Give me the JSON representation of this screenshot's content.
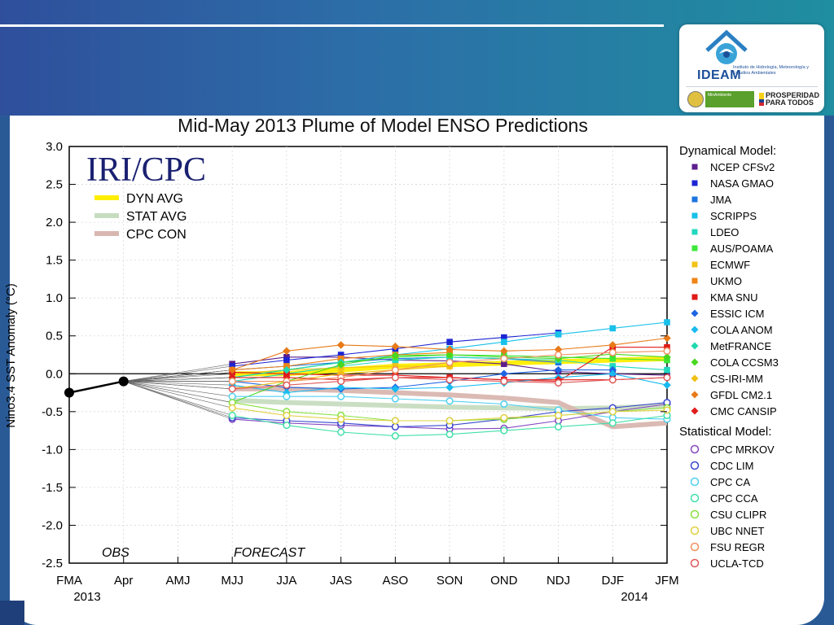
{
  "logos": {
    "ideam_name": "IDEAM",
    "ideam_subtitle": "Instituto de Hidrología, Meteorología y Estudios Ambientales",
    "ministry_text": "MinAmbiente",
    "prosperidad_line1": "PROSPERIDAD",
    "prosperidad_line2": "PARA TODOS"
  },
  "chart_data": {
    "type": "line",
    "title": "Mid-May 2013 Plume of Model ENSO Predictions",
    "watermark": "IRI/CPC",
    "ylabel": "Nino3.4 SST Anomaly (°C)",
    "ylim": [
      -2.5,
      3.0
    ],
    "yticks": [
      "3.0",
      "2.5",
      "2.0",
      "1.5",
      "1.0",
      "0.5",
      "0.0",
      "-0.5",
      "-1.0",
      "-1.5",
      "-2.0",
      "-2.5"
    ],
    "categories": [
      "FMA",
      "Apr",
      "AMJ",
      "MJJ",
      "JJA",
      "JAS",
      "ASO",
      "SON",
      "OND",
      "NDJ",
      "DJF",
      "JFM"
    ],
    "year_labels": [
      "2013",
      "2014"
    ],
    "obs_label": "OBS",
    "forecast_label": "FORECAST",
    "observed": [
      -0.25,
      -0.1
    ],
    "averages": [
      {
        "name": "DYN AVG",
        "color": "#ffee00",
        "values": [
          0.0,
          0.0,
          0.05,
          0.1,
          0.12,
          0.14,
          0.16,
          0.18,
          0.2
        ]
      },
      {
        "name": "STAT AVG",
        "color": "#c7dcc0",
        "values": [
          -0.35,
          -0.38,
          -0.4,
          -0.42,
          -0.44,
          -0.45,
          -0.46,
          -0.45,
          -0.42
        ]
      },
      {
        "name": "CPC CON",
        "color": "#d9b6b0",
        "values": [
          -0.2,
          -0.2,
          -0.22,
          -0.25,
          -0.28,
          -0.32,
          -0.38,
          -0.7,
          -0.65
        ]
      }
    ],
    "legend_dynamical_title": "Dynamical Model:",
    "legend_statistical_title": "Statistical Model:",
    "dynamical_models": [
      {
        "name": "NCEP CFSv2",
        "color": "#5c1f8c",
        "marker": "square",
        "values": [
          0.13,
          0.22,
          0.22,
          0.18,
          0.17,
          0.13,
          0.03,
          0.0,
          -0.02
        ]
      },
      {
        "name": "NASA GMAO",
        "color": "#1c24d4",
        "marker": "square",
        "values": [
          0.1,
          0.18,
          0.25,
          0.33,
          0.42,
          0.48,
          0.54,
          null,
          null
        ]
      },
      {
        "name": "JMA",
        "color": "#1b74e0",
        "marker": "square",
        "values": [
          0.05,
          0.1,
          0.15,
          0.2,
          0.22,
          0.2,
          0.15,
          null,
          null
        ]
      },
      {
        "name": "SCRIPPS",
        "color": "#18c0ea",
        "marker": "square",
        "values": [
          -0.05,
          0.05,
          0.15,
          0.25,
          0.33,
          0.42,
          0.52,
          0.6,
          0.68
        ]
      },
      {
        "name": "LDEO",
        "color": "#20d9c0",
        "marker": "square",
        "values": [
          -0.1,
          0.0,
          0.1,
          0.18,
          0.22,
          0.2,
          0.18,
          0.1,
          0.05
        ]
      },
      {
        "name": "AUS/POAMA",
        "color": "#3be838",
        "marker": "square",
        "values": [
          -0.05,
          0.05,
          0.15,
          0.22,
          0.25,
          0.24,
          0.22,
          0.2,
          0.18
        ]
      },
      {
        "name": "ECMWF",
        "color": "#f2c318",
        "marker": "square",
        "values": [
          0.0,
          0.05,
          0.08,
          0.1,
          0.1,
          null,
          null,
          null,
          null
        ]
      },
      {
        "name": "UKMO",
        "color": "#f08416",
        "marker": "square",
        "values": [
          0.05,
          0.1,
          0.2,
          0.25,
          0.28,
          null,
          null,
          null,
          null
        ]
      },
      {
        "name": "KMA SNU",
        "color": "#e01818",
        "marker": "square",
        "values": [
          0.02,
          0.0,
          -0.02,
          -0.02,
          -0.05,
          -0.08,
          -0.1,
          0.35,
          0.35
        ]
      },
      {
        "name": "ESSIC ICM",
        "color": "#1c64e4",
        "marker": "diamond",
        "values": [
          -0.1,
          -0.18,
          -0.2,
          -0.18,
          -0.1,
          0.0,
          0.05,
          0.05,
          null
        ]
      },
      {
        "name": "COLA ANOM",
        "color": "#18baf0",
        "marker": "diamond",
        "values": [
          -0.15,
          -0.25,
          -0.18,
          -0.2,
          -0.18,
          -0.12,
          -0.05,
          0.0,
          -0.15
        ]
      },
      {
        "name": "MetFRANCE",
        "color": "#20d8b0",
        "marker": "diamond",
        "values": [
          -0.05,
          0.05,
          0.15,
          null,
          null,
          null,
          null,
          null,
          null
        ]
      },
      {
        "name": "COLA CCSM3",
        "color": "#48d820",
        "marker": "diamond",
        "values": [
          -0.38,
          -0.1,
          0.12,
          0.24,
          0.25,
          0.22,
          0.2,
          0.26,
          0.22
        ]
      },
      {
        "name": "CS-IRI-MM",
        "color": "#f0c010",
        "marker": "diamond",
        "values": [
          -0.2,
          -0.1,
          0.0,
          0.05,
          0.1,
          null,
          null,
          null,
          null
        ]
      },
      {
        "name": "GFDL CM2.1",
        "color": "#e87a18",
        "marker": "diamond",
        "values": [
          0.05,
          0.3,
          0.38,
          0.36,
          0.32,
          0.3,
          0.32,
          0.38,
          0.47
        ]
      },
      {
        "name": "CMC CANSIP",
        "color": "#e01c1c",
        "marker": "diamond",
        "values": [
          -0.05,
          -0.05,
          -0.08,
          -0.05,
          -0.05,
          -0.08,
          -0.08,
          -0.08,
          -0.05
        ]
      }
    ],
    "statistical_models": [
      {
        "name": "CPC MRKOV",
        "color": "#8448c0",
        "marker": "circle",
        "values": [
          -0.6,
          -0.65,
          -0.68,
          -0.7,
          -0.73,
          -0.72,
          -0.62,
          -0.5,
          -0.4
        ]
      },
      {
        "name": "CDC LIM",
        "color": "#3a48d0",
        "marker": "circle",
        "values": [
          -0.58,
          -0.62,
          -0.65,
          -0.7,
          -0.68,
          -0.6,
          -0.5,
          -0.45,
          -0.38
        ]
      },
      {
        "name": "CPC CA",
        "color": "#50d0f0",
        "marker": "circle",
        "values": [
          -0.3,
          -0.3,
          -0.3,
          -0.33,
          -0.36,
          -0.4,
          -0.48,
          -0.58,
          -0.6
        ]
      },
      {
        "name": "CPC CCA",
        "color": "#40e0a8",
        "marker": "circle",
        "values": [
          -0.55,
          -0.68,
          -0.77,
          -0.82,
          -0.8,
          -0.75,
          -0.7,
          -0.65,
          -0.55
        ]
      },
      {
        "name": "CSU CLIPR",
        "color": "#88e040",
        "marker": "circle",
        "values": [
          -0.38,
          -0.5,
          -0.55,
          -0.62,
          -0.62,
          -0.6,
          -0.55,
          -0.5,
          -0.45
        ]
      },
      {
        "name": "UBC NNET",
        "color": "#e0d040",
        "marker": "circle",
        "values": [
          -0.45,
          -0.55,
          -0.6,
          -0.62,
          -0.62,
          -0.58,
          -0.55,
          -0.5,
          -0.48
        ]
      },
      {
        "name": "FSU REGR",
        "color": "#f09060",
        "marker": "circle",
        "values": [
          -0.1,
          -0.1,
          -0.05,
          0.05,
          0.15,
          0.2,
          0.25,
          0.28,
          0.3
        ]
      },
      {
        "name": "UCLA-TCD",
        "color": "#e05858",
        "marker": "circle",
        "values": [
          -0.2,
          -0.15,
          -0.1,
          -0.05,
          -0.08,
          -0.1,
          -0.12,
          -0.08,
          -0.05
        ]
      }
    ]
  }
}
